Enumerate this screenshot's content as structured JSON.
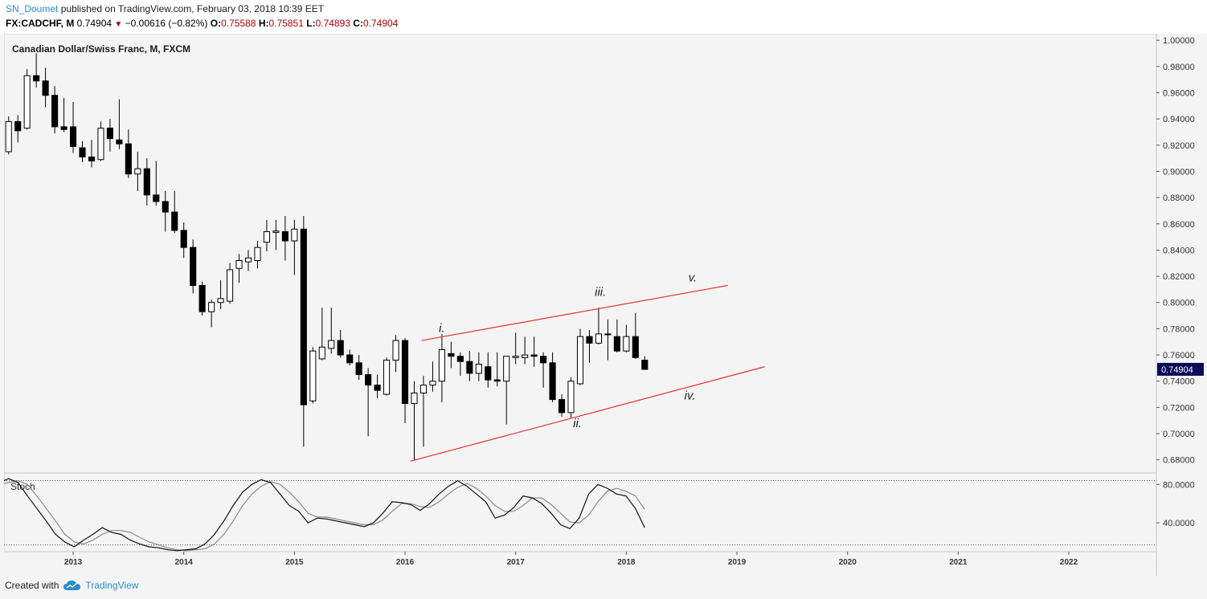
{
  "header": {
    "author": "SN_Doumet",
    "published": "published on TradingView.com, February 03, 2018 10:39 EET",
    "symbol": "FX:CADCHF, M",
    "last": "0.74904",
    "change": "−0.00616 (−0.82%)",
    "o_label": "O:",
    "o_value": "0.75588",
    "h_label": "H:",
    "h_value": "0.75851",
    "l_label": "L:",
    "l_value": "0.74893",
    "c_label": "C:",
    "c_value": "0.74904"
  },
  "footer": {
    "created_with": "Created with",
    "brand": "TradingView"
  },
  "colors": {
    "candle_up": "#ffffff",
    "candle_down": "#000000",
    "trendline": "#e8302a",
    "price_tag": "#0a0a5a",
    "brand": "#2a8ccc"
  },
  "chart_data": {
    "type": "candlestick",
    "title": "Canadian Dollar/Swiss Franc, M, FXCM",
    "current_price": "0.74904",
    "y_ticks": [
      "1.00000",
      "0.98000",
      "0.96000",
      "0.94000",
      "0.92000",
      "0.90000",
      "0.88000",
      "0.86000",
      "0.84000",
      "0.82000",
      "0.80000",
      "0.78000",
      "0.76000",
      "0.74000",
      "0.72000",
      "0.70000",
      "0.68000"
    ],
    "y_range": [
      0.67,
      1.005
    ],
    "x_labels": [
      "2013",
      "2014",
      "2015",
      "2016",
      "2017",
      "2018",
      "2019",
      "2020",
      "2021",
      "2022"
    ],
    "x_range_months": [
      -7.5,
      117.5
    ],
    "candles": [
      {
        "t": -7,
        "o": 0.915,
        "h": 0.942,
        "l": 0.913,
        "c": 0.938
      },
      {
        "t": -6,
        "o": 0.938,
        "h": 0.943,
        "l": 0.922,
        "c": 0.931
      },
      {
        "t": -5,
        "o": 0.933,
        "h": 0.978,
        "l": 0.932,
        "c": 0.973
      },
      {
        "t": -4,
        "o": 0.973,
        "h": 0.99,
        "l": 0.964,
        "c": 0.969
      },
      {
        "t": -3,
        "o": 0.969,
        "h": 0.979,
        "l": 0.949,
        "c": 0.958
      },
      {
        "t": -2,
        "o": 0.958,
        "h": 0.965,
        "l": 0.929,
        "c": 0.934
      },
      {
        "t": -1,
        "o": 0.934,
        "h": 0.956,
        "l": 0.93,
        "c": 0.932
      },
      {
        "t": 0,
        "o": 0.934,
        "h": 0.953,
        "l": 0.914,
        "c": 0.919
      },
      {
        "t": 1,
        "o": 0.918,
        "h": 0.923,
        "l": 0.907,
        "c": 0.911
      },
      {
        "t": 2,
        "o": 0.911,
        "h": 0.924,
        "l": 0.903,
        "c": 0.908
      },
      {
        "t": 3,
        "o": 0.909,
        "h": 0.938,
        "l": 0.908,
        "c": 0.933
      },
      {
        "t": 4,
        "o": 0.933,
        "h": 0.94,
        "l": 0.915,
        "c": 0.925
      },
      {
        "t": 5,
        "o": 0.924,
        "h": 0.955,
        "l": 0.917,
        "c": 0.921
      },
      {
        "t": 6,
        "o": 0.921,
        "h": 0.932,
        "l": 0.895,
        "c": 0.898
      },
      {
        "t": 7,
        "o": 0.898,
        "h": 0.915,
        "l": 0.885,
        "c": 0.902
      },
      {
        "t": 8,
        "o": 0.902,
        "h": 0.91,
        "l": 0.874,
        "c": 0.882
      },
      {
        "t": 9,
        "o": 0.882,
        "h": 0.908,
        "l": 0.874,
        "c": 0.877
      },
      {
        "t": 10,
        "o": 0.877,
        "h": 0.885,
        "l": 0.854,
        "c": 0.869
      },
      {
        "t": 11,
        "o": 0.869,
        "h": 0.885,
        "l": 0.853,
        "c": 0.855
      },
      {
        "t": 12,
        "o": 0.855,
        "h": 0.861,
        "l": 0.834,
        "c": 0.842
      },
      {
        "t": 13,
        "o": 0.842,
        "h": 0.848,
        "l": 0.807,
        "c": 0.813
      },
      {
        "t": 14,
        "o": 0.813,
        "h": 0.816,
        "l": 0.79,
        "c": 0.793
      },
      {
        "t": 15,
        "o": 0.793,
        "h": 0.802,
        "l": 0.781,
        "c": 0.8
      },
      {
        "t": 16,
        "o": 0.8,
        "h": 0.817,
        "l": 0.795,
        "c": 0.803
      },
      {
        "t": 17,
        "o": 0.801,
        "h": 0.83,
        "l": 0.799,
        "c": 0.825
      },
      {
        "t": 18,
        "o": 0.826,
        "h": 0.837,
        "l": 0.815,
        "c": 0.832
      },
      {
        "t": 19,
        "o": 0.831,
        "h": 0.84,
        "l": 0.824,
        "c": 0.834
      },
      {
        "t": 20,
        "o": 0.832,
        "h": 0.847,
        "l": 0.826,
        "c": 0.842
      },
      {
        "t": 21,
        "o": 0.846,
        "h": 0.863,
        "l": 0.839,
        "c": 0.854
      },
      {
        "t": 22,
        "o": 0.8535,
        "h": 0.863,
        "l": 0.84,
        "c": 0.8545
      },
      {
        "t": 23,
        "o": 0.854,
        "h": 0.866,
        "l": 0.832,
        "c": 0.847
      },
      {
        "t": 24,
        "o": 0.847,
        "h": 0.863,
        "l": 0.821,
        "c": 0.856
      },
      {
        "t": 25,
        "o": 0.856,
        "h": 0.866,
        "l": 0.69,
        "c": 0.722
      },
      {
        "t": 26,
        "o": 0.725,
        "h": 0.766,
        "l": 0.723,
        "c": 0.763
      },
      {
        "t": 27,
        "o": 0.757,
        "h": 0.796,
        "l": 0.756,
        "c": 0.766
      },
      {
        "t": 28,
        "o": 0.765,
        "h": 0.796,
        "l": 0.761,
        "c": 0.771
      },
      {
        "t": 29,
        "o": 0.771,
        "h": 0.779,
        "l": 0.758,
        "c": 0.76
      },
      {
        "t": 30,
        "o": 0.76,
        "h": 0.764,
        "l": 0.752,
        "c": 0.754
      },
      {
        "t": 31,
        "o": 0.754,
        "h": 0.76,
        "l": 0.741,
        "c": 0.745
      },
      {
        "t": 32,
        "o": 0.745,
        "h": 0.75,
        "l": 0.698,
        "c": 0.737
      },
      {
        "t": 33,
        "o": 0.737,
        "h": 0.745,
        "l": 0.727,
        "c": 0.733
      },
      {
        "t": 34,
        "o": 0.73,
        "h": 0.758,
        "l": 0.729,
        "c": 0.756
      },
      {
        "t": 35,
        "o": 0.756,
        "h": 0.775,
        "l": 0.747,
        "c": 0.771
      },
      {
        "t": 36,
        "o": 0.771,
        "h": 0.773,
        "l": 0.708,
        "c": 0.723
      },
      {
        "t": 37,
        "o": 0.723,
        "h": 0.74,
        "l": 0.68,
        "c": 0.731
      },
      {
        "t": 38,
        "o": 0.731,
        "h": 0.744,
        "l": 0.69,
        "c": 0.737
      },
      {
        "t": 39,
        "o": 0.737,
        "h": 0.755,
        "l": 0.732,
        "c": 0.74
      },
      {
        "t": 40,
        "o": 0.74,
        "h": 0.776,
        "l": 0.724,
        "c": 0.764
      },
      {
        "t": 41,
        "o": 0.761,
        "h": 0.77,
        "l": 0.75,
        "c": 0.759
      },
      {
        "t": 42,
        "o": 0.759,
        "h": 0.762,
        "l": 0.744,
        "c": 0.755
      },
      {
        "t": 43,
        "o": 0.755,
        "h": 0.763,
        "l": 0.74,
        "c": 0.746
      },
      {
        "t": 44,
        "o": 0.746,
        "h": 0.762,
        "l": 0.74,
        "c": 0.753
      },
      {
        "t": 45,
        "o": 0.751,
        "h": 0.762,
        "l": 0.735,
        "c": 0.741
      },
      {
        "t": 46,
        "o": 0.741,
        "h": 0.762,
        "l": 0.736,
        "c": 0.74
      },
      {
        "t": 47,
        "o": 0.74,
        "h": 0.758,
        "l": 0.707,
        "c": 0.759
      },
      {
        "t": 48,
        "o": 0.758,
        "h": 0.777,
        "l": 0.753,
        "c": 0.759
      },
      {
        "t": 49,
        "o": 0.758,
        "h": 0.774,
        "l": 0.753,
        "c": 0.76
      },
      {
        "t": 50,
        "o": 0.76,
        "h": 0.774,
        "l": 0.751,
        "c": 0.759
      },
      {
        "t": 51,
        "o": 0.759,
        "h": 0.762,
        "l": 0.735,
        "c": 0.754
      },
      {
        "t": 52,
        "o": 0.754,
        "h": 0.762,
        "l": 0.724,
        "c": 0.726
      },
      {
        "t": 53,
        "o": 0.726,
        "h": 0.73,
        "l": 0.713,
        "c": 0.716
      },
      {
        "t": 54,
        "o": 0.716,
        "h": 0.743,
        "l": 0.712,
        "c": 0.74
      },
      {
        "t": 55,
        "o": 0.738,
        "h": 0.78,
        "l": 0.737,
        "c": 0.774
      },
      {
        "t": 56,
        "o": 0.774,
        "h": 0.779,
        "l": 0.754,
        "c": 0.769
      },
      {
        "t": 57,
        "o": 0.769,
        "h": 0.796,
        "l": 0.768,
        "c": 0.776
      },
      {
        "t": 58,
        "o": 0.776,
        "h": 0.787,
        "l": 0.756,
        "c": 0.776
      },
      {
        "t": 59,
        "o": 0.774,
        "h": 0.787,
        "l": 0.762,
        "c": 0.763
      },
      {
        "t": 60,
        "o": 0.763,
        "h": 0.783,
        "l": 0.762,
        "c": 0.774
      },
      {
        "t": 61,
        "o": 0.774,
        "h": 0.792,
        "l": 0.757,
        "c": 0.758
      },
      {
        "t": 62,
        "o": 0.756,
        "h": 0.759,
        "l": 0.749,
        "c": 0.749
      }
    ],
    "stochastic": {
      "label": "Stoch",
      "y_ticks": [
        "80.0000",
        "40.0000"
      ],
      "y_range": [
        10,
        92
      ],
      "k": [
        82,
        86,
        82,
        68,
        55,
        42,
        28,
        20,
        15,
        22,
        28,
        35,
        30,
        28,
        22,
        18,
        15,
        14,
        12,
        11,
        12,
        13,
        18,
        28,
        42,
        58,
        72,
        80,
        85,
        82,
        70,
        58,
        52,
        40,
        45,
        44,
        42,
        40,
        38,
        36,
        40,
        50,
        62,
        61,
        59,
        53,
        60,
        70,
        78,
        84,
        78,
        70,
        62,
        45,
        48,
        56,
        68,
        66,
        60,
        50,
        38,
        34,
        45,
        70,
        80,
        76,
        70,
        68,
        55,
        35
      ],
      "d": [
        80,
        82,
        84,
        80,
        68,
        55,
        42,
        28,
        20,
        18,
        22,
        28,
        32,
        32,
        30,
        25,
        20,
        17,
        14,
        12,
        11,
        12,
        13,
        18,
        28,
        42,
        58,
        70,
        78,
        83,
        80,
        72,
        62,
        50,
        46,
        46,
        44,
        42,
        40,
        38,
        38,
        43,
        52,
        60,
        60,
        57,
        56,
        62,
        70,
        77,
        81,
        76,
        68,
        58,
        52,
        52,
        58,
        66,
        66,
        59,
        50,
        41,
        40,
        48,
        62,
        73,
        76,
        73,
        68,
        54
      ]
    },
    "annotations": {
      "wave_labels": [
        {
          "text": "i.",
          "t": 40.0,
          "y": 0.7775
        },
        {
          "text": "ii.",
          "t": 54.7,
          "y": 0.705
        },
        {
          "text": "iii.",
          "t": 57.2,
          "y": 0.805
        },
        {
          "text": "iv.",
          "t": 66.9,
          "y": 0.726
        },
        {
          "text": "v.",
          "t": 67.2,
          "y": 0.816
        }
      ],
      "trendlines": [
        {
          "t1": 36.6,
          "y1": 0.679,
          "t2": 75.0,
          "y2": 0.751
        },
        {
          "t1": 37.8,
          "y1": 0.771,
          "t2": 71.0,
          "y2": 0.813
        }
      ]
    }
  }
}
